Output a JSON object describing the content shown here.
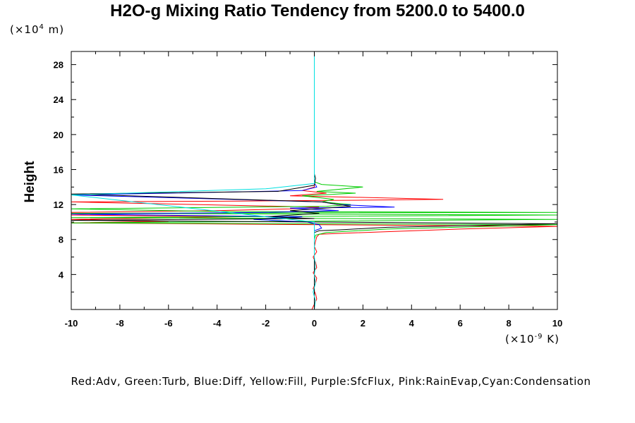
{
  "chart_data": {
    "type": "line",
    "title": "H2O-g Mixing Ratio Tendency from 5200.0 to 5400.0",
    "ylabel": "Height",
    "yunit_prefix": "(×10",
    "yunit_exp": "4",
    "yunit_suffix": " m)",
    "xunit_prefix": "(×10",
    "xunit_exp": "-9",
    "xunit_suffix": " K)",
    "xlim": [
      -10,
      10
    ],
    "ylim": [
      0,
      29.5
    ],
    "xticks": [
      -10,
      -8,
      -6,
      -4,
      -2,
      0,
      2,
      4,
      6,
      8,
      10
    ],
    "xtick_labels": [
      "-10",
      "-8",
      "-6",
      "-4",
      "-2",
      "0",
      "2",
      "4",
      "6",
      "8",
      "10"
    ],
    "yticks": [
      4,
      8,
      12,
      16,
      20,
      24,
      28
    ],
    "ytick_labels": [
      "4",
      "8",
      "12",
      "16",
      "20",
      "24",
      "28"
    ],
    "grid": false,
    "legend_text": "Red:Adv, Green:Turb, Blue:Diff, Yellow:Fill, Purple:SfcFlux, Pink:RainEvap,Cyan:Condensation",
    "series": [
      {
        "color": "#ff0000",
        "points": [
          [
            -0.1,
            0
          ],
          [
            0.0,
            0.6
          ],
          [
            0.1,
            1.2
          ],
          [
            0.05,
            1.8
          ],
          [
            -0.05,
            2.4
          ],
          [
            0.05,
            3.0
          ],
          [
            0.1,
            3.6
          ],
          [
            -0.05,
            4.2
          ],
          [
            0.1,
            4.8
          ],
          [
            0.05,
            5.4
          ],
          [
            -0.05,
            6.0
          ],
          [
            0.1,
            6.6
          ],
          [
            0.0,
            7.2
          ],
          [
            0.05,
            7.8
          ],
          [
            0.1,
            8.3
          ],
          [
            0.2,
            8.6
          ],
          [
            1.0,
            8.7
          ],
          [
            3.0,
            8.9
          ],
          [
            6.0,
            9.2
          ],
          [
            10.0,
            9.5
          ],
          [
            -10.0,
            9.9
          ],
          [
            -6.0,
            10.1
          ],
          [
            -10.0,
            10.3
          ],
          [
            -3.0,
            10.6
          ],
          [
            -10.0,
            10.8
          ],
          [
            -10.0,
            11.1
          ],
          [
            -4.0,
            11.3
          ],
          [
            -1.0,
            11.5
          ],
          [
            0.2,
            11.7
          ],
          [
            -10.0,
            12.3
          ],
          [
            -3.0,
            12.4
          ],
          [
            2.0,
            12.5
          ],
          [
            5.3,
            12.6
          ],
          [
            -1.0,
            13.0
          ],
          [
            0.5,
            13.3
          ],
          [
            -0.5,
            13.6
          ],
          [
            0.0,
            14.0
          ],
          [
            0.0,
            29.5
          ]
        ]
      },
      {
        "color": "#00cc00",
        "points": [
          [
            0.0,
            0
          ],
          [
            0.0,
            8.0
          ],
          [
            0.05,
            8.5
          ],
          [
            0.5,
            8.8
          ],
          [
            3.0,
            9.2
          ],
          [
            10.0,
            9.7
          ],
          [
            -10.0,
            9.9
          ],
          [
            -5.0,
            10.0
          ],
          [
            10.0,
            10.3
          ],
          [
            -10.0,
            10.5
          ],
          [
            10.0,
            10.8
          ],
          [
            -10.0,
            11.0
          ],
          [
            10.0,
            11.1
          ],
          [
            -4.0,
            11.2
          ],
          [
            -10.0,
            11.5
          ],
          [
            0.5,
            11.8
          ],
          [
            1.5,
            12.0
          ],
          [
            0.3,
            12.3
          ],
          [
            0.8,
            12.6
          ],
          [
            -0.5,
            13.0
          ],
          [
            1.7,
            13.3
          ],
          [
            0.1,
            13.5
          ],
          [
            2.0,
            14.0
          ],
          [
            0.3,
            14.3
          ],
          [
            0.0,
            14.6
          ],
          [
            0.0,
            29.5
          ]
        ]
      },
      {
        "color": "#0000ff",
        "points": [
          [
            0.0,
            0
          ],
          [
            0.0,
            9.0
          ],
          [
            0.3,
            9.3
          ],
          [
            0.2,
            9.7
          ],
          [
            -0.3,
            10.0
          ],
          [
            -2.5,
            10.3
          ],
          [
            -0.5,
            10.6
          ],
          [
            -10.0,
            10.9
          ],
          [
            -2.0,
            11.1
          ],
          [
            1.0,
            11.3
          ],
          [
            -1.0,
            11.6
          ],
          [
            3.3,
            11.7
          ],
          [
            1.0,
            12.0
          ],
          [
            0.3,
            12.3
          ],
          [
            -10.0,
            13.1
          ],
          [
            -6.0,
            13.3
          ],
          [
            -0.5,
            13.6
          ],
          [
            0.1,
            14.0
          ],
          [
            0.0,
            14.5
          ],
          [
            0.0,
            29.5
          ]
        ]
      },
      {
        "color": "#000000",
        "points": [
          [
            0.0,
            0
          ],
          [
            0.0,
            8.8
          ],
          [
            0.2,
            9.0
          ],
          [
            1.0,
            9.1
          ],
          [
            3.0,
            9.4
          ],
          [
            10.0,
            9.8
          ],
          [
            -10.0,
            10.2
          ],
          [
            0.0,
            10.4
          ],
          [
            -2.0,
            10.6
          ],
          [
            0.2,
            11.0
          ],
          [
            -1.0,
            11.3
          ],
          [
            1.5,
            11.8
          ],
          [
            0.3,
            12.3
          ],
          [
            -10.0,
            13.2
          ],
          [
            -1.5,
            13.5
          ],
          [
            0.0,
            14.2
          ],
          [
            0.05,
            15.0
          ],
          [
            0.0,
            15.5
          ],
          [
            0.0,
            29.5
          ]
        ]
      },
      {
        "color": "#00e0e0",
        "points": [
          [
            0.0,
            0
          ],
          [
            0.05,
            1.0
          ],
          [
            -0.05,
            2.0
          ],
          [
            0.05,
            3.0
          ],
          [
            0.0,
            4.0
          ],
          [
            0.05,
            5.0
          ],
          [
            0.0,
            6.0
          ],
          [
            0.0,
            8.0
          ],
          [
            0.0,
            10.0
          ],
          [
            -10.0,
            13.1
          ],
          [
            -2.0,
            13.8
          ],
          [
            0.0,
            14.4
          ],
          [
            0.0,
            29.5
          ]
        ]
      }
    ]
  }
}
